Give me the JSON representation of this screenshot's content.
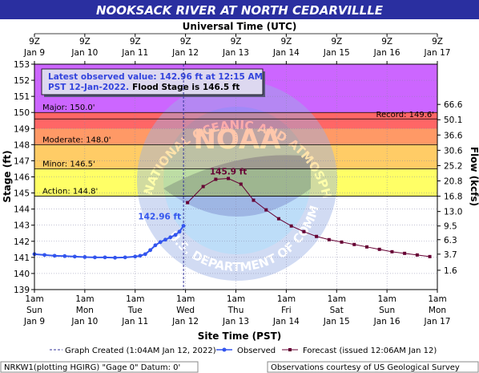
{
  "header": {
    "title": "NOOKSACK RIVER AT NORTH CEDARVILLLE",
    "utc_axis_label": "Universal Time (UTC)",
    "site_axis_label": "Site Time (PST)"
  },
  "info_box": {
    "line1": "Latest observed value: 142.96 ft at 12:15 AM",
    "line2_a": "PST 12-Jan-2022.",
    "line2_b": "Flood Stage is 146.5 ft"
  },
  "watermark": {
    "logo_text": "NOAA",
    "ring_text": "NATIONAL OCEANIC AND ATMOSPHERIC ADMINISTRATION",
    "ring_text_bottom": "U.S. DEPARTMENT OF COMMERCE"
  },
  "legend": {
    "created": "Graph Created (1:04AM Jan 12, 2022)",
    "observed": "Observed",
    "forecast": "Forecast (issued 12:06AM Jan 12)"
  },
  "footer": {
    "left": "NRKW1(plotting HGIRG) \"Gage 0\" Datum: 0'",
    "right": "Observations courtesy of US Geological Survey"
  },
  "colors": {
    "title_bg": "#2a2fa0",
    "plot_bg": "#c8c8ff",
    "major": "#cc66ff",
    "record_band": "#ff6666",
    "moderate": "#ff9966",
    "minor": "#ffcc66",
    "action": "#ffff66",
    "observed": "#3355ee",
    "forecast": "#660033",
    "info_bg": "#ddd8f0"
  },
  "chart_data": {
    "type": "line",
    "ylabel": "Stage (ft)",
    "y2label": "Flow (kcfs)",
    "ylim": [
      139,
      153
    ],
    "y_ticks": [
      139,
      140,
      141,
      142,
      143,
      144,
      145,
      146,
      147,
      148,
      149,
      150,
      151,
      152,
      153
    ],
    "y2_ticks": [
      {
        "stage": 140.2,
        "label": "1.6"
      },
      {
        "stage": 141.2,
        "label": "3.7"
      },
      {
        "stage": 142.1,
        "label": "6.3"
      },
      {
        "stage": 142.95,
        "label": "9.5"
      },
      {
        "stage": 143.85,
        "label": "13.0"
      },
      {
        "stage": 144.8,
        "label": "16.8"
      },
      {
        "stage": 145.75,
        "label": "20.8"
      },
      {
        "stage": 146.7,
        "label": "25.2"
      },
      {
        "stage": 147.65,
        "label": "30.6"
      },
      {
        "stage": 148.6,
        "label": "36.6"
      },
      {
        "stage": 149.55,
        "label": "50.1"
      },
      {
        "stage": 150.5,
        "label": "66.6"
      }
    ],
    "x_range_days": [
      0,
      8
    ],
    "utc_ticks": [
      {
        "day": 0,
        "top": "9Z",
        "bottom": "Jan 9"
      },
      {
        "day": 1,
        "top": "9Z",
        "bottom": "Jan 10"
      },
      {
        "day": 2,
        "top": "9Z",
        "bottom": "Jan 11"
      },
      {
        "day": 3,
        "top": "9Z",
        "bottom": "Jan 12"
      },
      {
        "day": 4,
        "top": "9Z",
        "bottom": "Jan 13"
      },
      {
        "day": 5,
        "top": "9Z",
        "bottom": "Jan 14"
      },
      {
        "day": 6,
        "top": "9Z",
        "bottom": "Jan 15"
      },
      {
        "day": 7,
        "top": "9Z",
        "bottom": "Jan 16"
      },
      {
        "day": 8,
        "top": "9Z",
        "bottom": "Jan 17"
      }
    ],
    "pst_ticks": [
      {
        "day": 0,
        "l1": "1am",
        "l2": "Sun",
        "l3": "Jan 9"
      },
      {
        "day": 1,
        "l1": "1am",
        "l2": "Mon",
        "l3": "Jan 10"
      },
      {
        "day": 2,
        "l1": "1am",
        "l2": "Tue",
        "l3": "Jan 11"
      },
      {
        "day": 3,
        "l1": "1am",
        "l2": "Wed",
        "l3": "Jan 12"
      },
      {
        "day": 4,
        "l1": "1am",
        "l2": "Thu",
        "l3": "Jan 13"
      },
      {
        "day": 5,
        "l1": "1am",
        "l2": "Fri",
        "l3": "Jan 14"
      },
      {
        "day": 6,
        "l1": "1am",
        "l2": "Sat",
        "l3": "Jan 15"
      },
      {
        "day": 7,
        "l1": "1am",
        "l2": "Sun",
        "l3": "Jan 16"
      },
      {
        "day": 8,
        "l1": "1am",
        "l2": "Mon",
        "l3": "Jan 17"
      }
    ],
    "flood_categories": [
      {
        "name": "Major",
        "label": "Major: 150.0'",
        "from": 150.0,
        "to": 153,
        "color": "#cc66ff"
      },
      {
        "name": "Moderate",
        "label": "Moderate: 148.0'",
        "from": 148.0,
        "to": 150.0,
        "color": "#ff6666"
      },
      {
        "name": "Minor",
        "label": "Minor: 146.5'",
        "from": 146.5,
        "to": 148.0,
        "color": "#ffcc66"
      },
      {
        "name": "Action",
        "label": "Action: 144.8'",
        "from": 144.8,
        "to": 146.5,
        "color": "#ffff66"
      }
    ],
    "record": {
      "value": 149.6,
      "label": "Record: 149.6'"
    },
    "created_day": 2.96,
    "observed": {
      "name": "Observed",
      "points": [
        [
          0.0,
          141.2
        ],
        [
          0.2,
          141.15
        ],
        [
          0.4,
          141.1
        ],
        [
          0.6,
          141.08
        ],
        [
          0.8,
          141.05
        ],
        [
          1.0,
          141.02
        ],
        [
          1.2,
          141.0
        ],
        [
          1.4,
          141.0
        ],
        [
          1.6,
          140.98
        ],
        [
          1.8,
          141.0
        ],
        [
          2.0,
          141.05
        ],
        [
          2.1,
          141.1
        ],
        [
          2.2,
          141.2
        ],
        [
          2.3,
          141.45
        ],
        [
          2.4,
          141.75
        ],
        [
          2.5,
          141.95
        ],
        [
          2.6,
          142.1
        ],
        [
          2.7,
          142.25
        ],
        [
          2.8,
          142.4
        ],
        [
          2.88,
          142.6
        ],
        [
          2.96,
          142.96
        ]
      ],
      "peak_label": "142.96 ft"
    },
    "forecast": {
      "name": "Forecast",
      "points": [
        [
          3.04,
          144.4
        ],
        [
          3.35,
          145.4
        ],
        [
          3.6,
          145.85
        ],
        [
          3.85,
          145.9
        ],
        [
          4.1,
          145.55
        ],
        [
          4.35,
          144.55
        ],
        [
          4.6,
          143.95
        ],
        [
          4.85,
          143.4
        ],
        [
          5.1,
          142.95
        ],
        [
          5.35,
          142.6
        ],
        [
          5.6,
          142.3
        ],
        [
          5.85,
          142.1
        ],
        [
          6.1,
          141.95
        ],
        [
          6.35,
          141.8
        ],
        [
          6.6,
          141.65
        ],
        [
          6.85,
          141.5
        ],
        [
          7.1,
          141.35
        ],
        [
          7.35,
          141.25
        ],
        [
          7.6,
          141.15
        ],
        [
          7.85,
          141.05
        ]
      ],
      "peak_label": "145.9 ft"
    }
  }
}
